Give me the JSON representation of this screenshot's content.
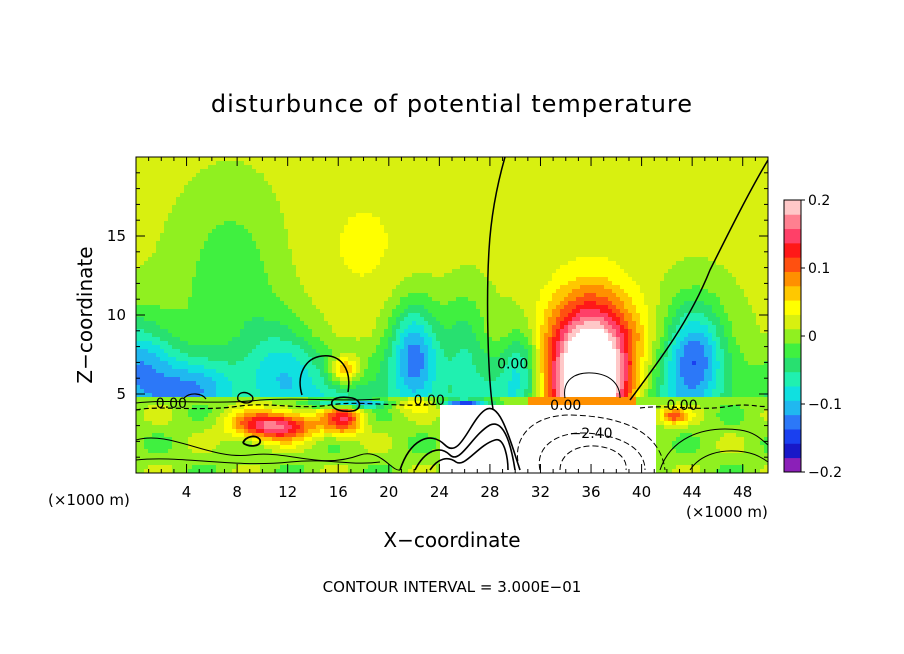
{
  "chart_data": {
    "type": "heatmap",
    "title": "disturbunce of potential temperature",
    "xlabel": "X−coordinate",
    "ylabel": "Z−coordinate",
    "x_unit": "(×1000 m)",
    "x_unit_right": "(×1000 m)",
    "xlim": [
      0,
      50
    ],
    "ylim": [
      0,
      20
    ],
    "x_ticks": [
      4,
      8,
      12,
      16,
      20,
      24,
      28,
      32,
      36,
      40,
      44,
      48
    ],
    "y_ticks": [
      5,
      10,
      15
    ],
    "footer": "CONTOUR INTERVAL = 3.000E−01",
    "colorbar": {
      "min": -0.2,
      "max": 0.2,
      "tick_values": [
        0.2,
        0.1,
        0,
        -0.1,
        -0.2
      ],
      "tick_labels": [
        "0.2",
        "0.1",
        "0",
        "−0.1",
        "−0.2"
      ],
      "colors": [
        "#8b20b8",
        "#1818c8",
        "#1a40f0",
        "#2c78f8",
        "#20b8f0",
        "#10e0e0",
        "#20f0b0",
        "#28e070",
        "#40f040",
        "#90f020",
        "#d8f010",
        "#ffff00",
        "#ffc800",
        "#ff9000",
        "#ff5010",
        "#ff1818",
        "#ff4068",
        "#ff8090",
        "#ffc8c8"
      ]
    },
    "contour_labels": [
      {
        "text": "0.00",
        "x": 2.8,
        "z": 4.1
      },
      {
        "text": "0.00",
        "x": 23.2,
        "z": 4.3
      },
      {
        "text": "0.00",
        "x": 29.8,
        "z": 6.6
      },
      {
        "text": "0.00",
        "x": 34.0,
        "z": 4.0
      },
      {
        "text": "0.00",
        "x": 43.2,
        "z": 4.0
      },
      {
        "text": "−2.40",
        "x": 36.0,
        "z": 2.2
      }
    ],
    "warm_anomaly_center": {
      "x": 36,
      "z": 6,
      "value": 0.2
    },
    "cold_anomalies": [
      {
        "x": 22,
        "z": 7,
        "value": -0.13
      },
      {
        "x": 44,
        "z": 7,
        "value": -0.13
      },
      {
        "x": 11,
        "z": 6,
        "value": -0.1
      },
      {
        "x": 30,
        "z": 6,
        "value": -0.1
      }
    ]
  }
}
